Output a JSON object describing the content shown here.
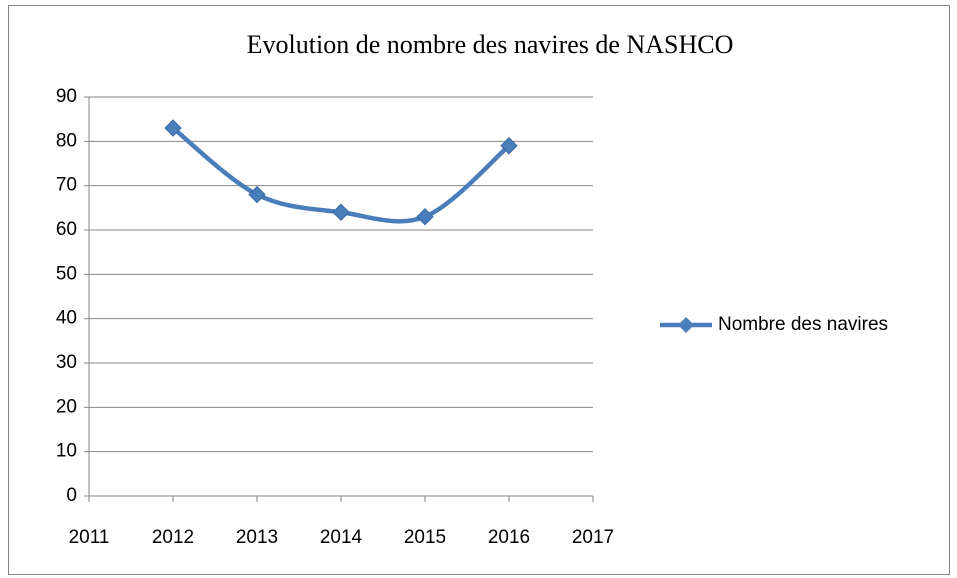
{
  "chart_data": {
    "type": "line",
    "title": "Evolution de nombre des navires de NASHCO",
    "x": [
      2012,
      2013,
      2014,
      2015,
      2016
    ],
    "series": [
      {
        "name": "Nombre des navires",
        "color": "#4a7ebb",
        "values": [
          83,
          68,
          64,
          63,
          79
        ]
      }
    ],
    "xlim": [
      2011,
      2017
    ],
    "xticks": [
      2011,
      2012,
      2013,
      2014,
      2015,
      2016,
      2017
    ],
    "ylim": [
      0,
      90
    ],
    "yticks": [
      0,
      10,
      20,
      30,
      40,
      50,
      60,
      70,
      80,
      90
    ],
    "grid": true,
    "legend": "right",
    "smooth": true
  }
}
